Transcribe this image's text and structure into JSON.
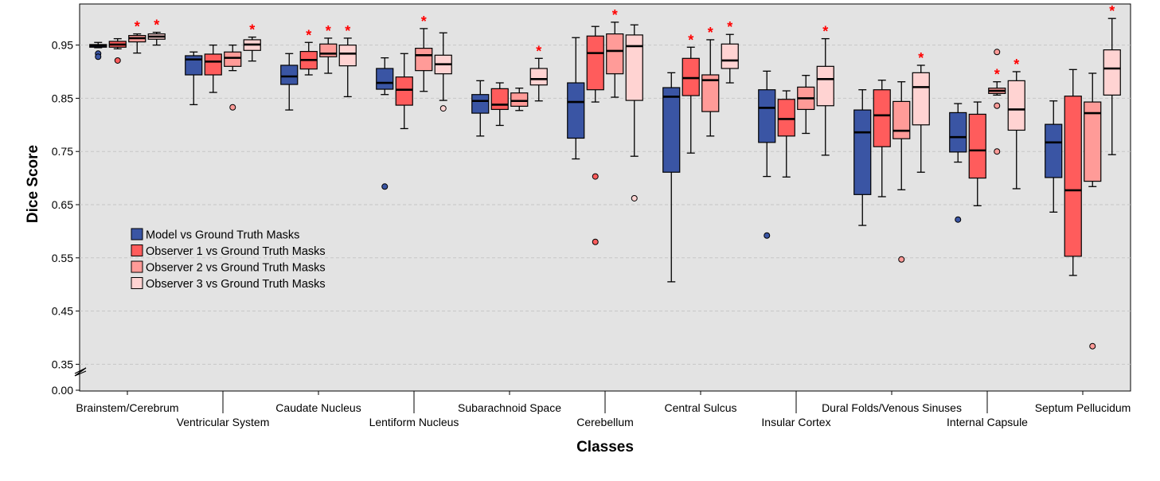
{
  "chart_data": {
    "type": "box",
    "title": "",
    "xlabel": "Classes",
    "ylabel": "Dice Score",
    "y_ticks": [
      "0.00",
      "0.35",
      "0.45",
      "0.55",
      "0.65",
      "0.75",
      "0.85",
      "0.95"
    ],
    "y_axis_break": {
      "from": 0.0,
      "to": 0.35
    },
    "ylim": [
      0.0,
      1.0
    ],
    "grid": "horizontal dashed",
    "legend_placement": "left-middle",
    "significance_marker": "*",
    "categories": [
      "Brainstem/Cerebrum",
      "Ventricular System",
      "Caudate Nucleus",
      "Lentiform Nucleus",
      "Subarachnoid Space",
      "Cerebellum",
      "Central Sulcus",
      "Insular Cortex",
      "Dural Folds/Venous Sinuses",
      "Internal Capsule",
      "Septum Pellucidum"
    ],
    "series": [
      {
        "name": "Model vs Ground Truth Masks",
        "color": "#3a55a4"
      },
      {
        "name": "Observer 1 vs Ground Truth Masks",
        "color": "#ff5c5c"
      },
      {
        "name": "Observer 2 vs Ground Truth Masks",
        "color": "#ff9b98"
      },
      {
        "name": "Observer 3 vs Ground Truth Masks",
        "color": "#ffd3d2"
      }
    ],
    "boxes": [
      [
        {
          "min": 0.945,
          "q1": 0.946,
          "median": 0.949,
          "q3": 0.951,
          "max": 0.955,
          "outliers": [
            0.934,
            0.928
          ],
          "sig": false
        },
        {
          "min": 0.943,
          "q1": 0.946,
          "median": 0.951,
          "q3": 0.957,
          "max": 0.962,
          "outliers": [
            0.921
          ],
          "sig": false
        },
        {
          "min": 0.935,
          "q1": 0.956,
          "median": 0.963,
          "q3": 0.968,
          "max": 0.971,
          "outliers": [],
          "sig": true
        },
        {
          "min": 0.95,
          "q1": 0.961,
          "median": 0.966,
          "q3": 0.971,
          "max": 0.974,
          "outliers": [],
          "sig": true
        }
      ],
      [
        {
          "min": 0.838,
          "q1": 0.894,
          "median": 0.923,
          "q3": 0.93,
          "max": 0.937,
          "outliers": [],
          "sig": false
        },
        {
          "min": 0.861,
          "q1": 0.894,
          "median": 0.919,
          "q3": 0.933,
          "max": 0.95,
          "outliers": [],
          "sig": false
        },
        {
          "min": 0.902,
          "q1": 0.91,
          "median": 0.926,
          "q3": 0.937,
          "max": 0.95,
          "outliers": [
            0.833
          ],
          "sig": false
        },
        {
          "min": 0.92,
          "q1": 0.94,
          "median": 0.951,
          "q3": 0.96,
          "max": 0.965,
          "outliers": [],
          "sig": true
        }
      ],
      [
        {
          "min": 0.828,
          "q1": 0.876,
          "median": 0.891,
          "q3": 0.912,
          "max": 0.934,
          "outliers": [],
          "sig": false
        },
        {
          "min": 0.894,
          "q1": 0.905,
          "median": 0.922,
          "q3": 0.938,
          "max": 0.955,
          "outliers": [],
          "sig": true
        },
        {
          "min": 0.897,
          "q1": 0.928,
          "median": 0.934,
          "q3": 0.952,
          "max": 0.963,
          "outliers": [],
          "sig": true
        },
        {
          "min": 0.853,
          "q1": 0.911,
          "median": 0.934,
          "q3": 0.95,
          "max": 0.963,
          "outliers": [],
          "sig": true
        }
      ],
      [
        {
          "min": 0.857,
          "q1": 0.867,
          "median": 0.879,
          "q3": 0.906,
          "max": 0.926,
          "outliers": [
            0.684
          ],
          "sig": false
        },
        {
          "min": 0.793,
          "q1": 0.837,
          "median": 0.866,
          "q3": 0.89,
          "max": 0.934,
          "outliers": [],
          "sig": false
        },
        {
          "min": 0.863,
          "q1": 0.902,
          "median": 0.931,
          "q3": 0.944,
          "max": 0.981,
          "outliers": [],
          "sig": true
        },
        {
          "min": 0.846,
          "q1": 0.896,
          "median": 0.914,
          "q3": 0.931,
          "max": 0.973,
          "outliers": [
            0.831
          ],
          "sig": false
        }
      ],
      [
        {
          "min": 0.779,
          "q1": 0.822,
          "median": 0.845,
          "q3": 0.857,
          "max": 0.883,
          "outliers": [],
          "sig": false
        },
        {
          "min": 0.799,
          "q1": 0.829,
          "median": 0.838,
          "q3": 0.868,
          "max": 0.879,
          "outliers": [],
          "sig": false
        },
        {
          "min": 0.827,
          "q1": 0.835,
          "median": 0.845,
          "q3": 0.86,
          "max": 0.869,
          "outliers": [],
          "sig": false
        },
        {
          "min": 0.845,
          "q1": 0.875,
          "median": 0.886,
          "q3": 0.906,
          "max": 0.925,
          "outliers": [],
          "sig": true
        }
      ],
      [
        {
          "min": 0.736,
          "q1": 0.775,
          "median": 0.843,
          "q3": 0.879,
          "max": 0.964,
          "outliers": [],
          "sig": false
        },
        {
          "min": 0.843,
          "q1": 0.866,
          "median": 0.935,
          "q3": 0.967,
          "max": 0.985,
          "outliers": [
            0.703,
            0.58
          ],
          "sig": false
        },
        {
          "min": 0.852,
          "q1": 0.896,
          "median": 0.939,
          "q3": 0.971,
          "max": 0.993,
          "outliers": [],
          "sig": true
        },
        {
          "min": 0.741,
          "q1": 0.846,
          "median": 0.948,
          "q3": 0.969,
          "max": 0.988,
          "outliers": [
            0.662
          ],
          "sig": false
        }
      ],
      [
        {
          "min": 0.505,
          "q1": 0.711,
          "median": 0.853,
          "q3": 0.87,
          "max": 0.898,
          "outliers": [],
          "sig": false
        },
        {
          "min": 0.747,
          "q1": 0.855,
          "median": 0.888,
          "q3": 0.925,
          "max": 0.946,
          "outliers": [],
          "sig": true
        },
        {
          "min": 0.779,
          "q1": 0.825,
          "median": 0.884,
          "q3": 0.894,
          "max": 0.96,
          "outliers": [],
          "sig": true
        },
        {
          "min": 0.879,
          "q1": 0.906,
          "median": 0.921,
          "q3": 0.952,
          "max": 0.97,
          "outliers": [],
          "sig": true
        }
      ],
      [
        {
          "min": 0.703,
          "q1": 0.767,
          "median": 0.832,
          "q3": 0.866,
          "max": 0.901,
          "outliers": [
            0.592
          ],
          "sig": false
        },
        {
          "min": 0.702,
          "q1": 0.779,
          "median": 0.811,
          "q3": 0.848,
          "max": 0.864,
          "outliers": [],
          "sig": false
        },
        {
          "min": 0.784,
          "q1": 0.829,
          "median": 0.85,
          "q3": 0.871,
          "max": 0.893,
          "outliers": [],
          "sig": false
        },
        {
          "min": 0.743,
          "q1": 0.836,
          "median": 0.886,
          "q3": 0.91,
          "max": 0.962,
          "outliers": [],
          "sig": true
        }
      ],
      [
        {
          "min": 0.611,
          "q1": 0.669,
          "median": 0.786,
          "q3": 0.828,
          "max": 0.866,
          "outliers": [],
          "sig": false
        },
        {
          "min": 0.665,
          "q1": 0.759,
          "median": 0.818,
          "q3": 0.866,
          "max": 0.884,
          "outliers": [],
          "sig": false
        },
        {
          "min": 0.678,
          "q1": 0.774,
          "median": 0.789,
          "q3": 0.844,
          "max": 0.881,
          "outliers": [
            0.547
          ],
          "sig": false
        },
        {
          "min": 0.711,
          "q1": 0.8,
          "median": 0.871,
          "q3": 0.898,
          "max": 0.912,
          "outliers": [],
          "sig": true
        }
      ],
      [
        {
          "min": 0.73,
          "q1": 0.749,
          "median": 0.777,
          "q3": 0.823,
          "max": 0.84,
          "outliers": [
            0.622
          ],
          "sig": false
        },
        {
          "min": 0.648,
          "q1": 0.7,
          "median": 0.752,
          "q3": 0.82,
          "max": 0.843,
          "outliers": [],
          "sig": false
        },
        {
          "min": 0.856,
          "q1": 0.859,
          "median": 0.864,
          "q3": 0.869,
          "max": 0.881,
          "outliers": [
            0.937,
            0.836,
            0.75
          ],
          "sig": true
        },
        {
          "min": 0.68,
          "q1": 0.79,
          "median": 0.829,
          "q3": 0.883,
          "max": 0.9,
          "outliers": [],
          "sig": true
        }
      ],
      [
        {
          "min": 0.636,
          "q1": 0.701,
          "median": 0.767,
          "q3": 0.801,
          "max": 0.845,
          "outliers": [],
          "sig": false
        },
        {
          "min": 0.517,
          "q1": 0.553,
          "median": 0.677,
          "q3": 0.854,
          "max": 0.904,
          "outliers": [],
          "sig": false
        },
        {
          "min": 0.684,
          "q1": 0.694,
          "median": 0.822,
          "q3": 0.843,
          "max": 0.897,
          "outliers": [
            0.384
          ],
          "sig": false
        },
        {
          "min": 0.744,
          "q1": 0.856,
          "median": 0.906,
          "q3": 0.941,
          "max": 1.0,
          "outliers": [],
          "sig": true
        }
      ]
    ]
  }
}
